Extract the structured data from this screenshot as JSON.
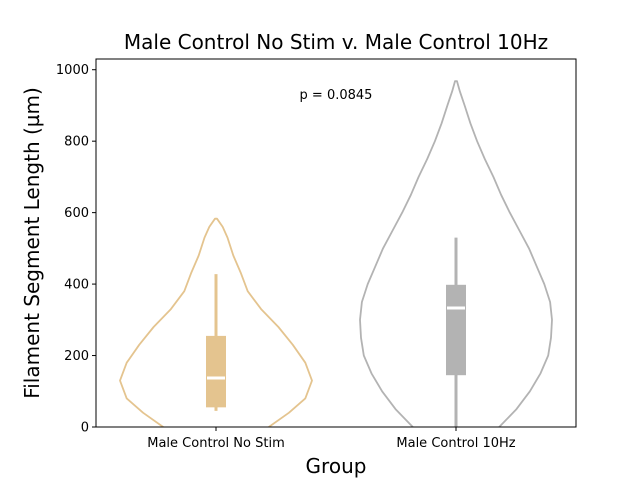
{
  "chart_data": {
    "type": "violin",
    "title": "Male Control No Stim v. Male Control 10Hz",
    "xlabel": "Group",
    "ylabel": "Filament Segment Length (µm)",
    "ylim": [
      0,
      1030
    ],
    "yticks": [
      0,
      200,
      400,
      600,
      800,
      1000
    ],
    "ytick_labels": [
      "0",
      "200",
      "400",
      "600",
      "800",
      "1000"
    ],
    "categories": [
      "Male Control No Stim",
      "Male Control 10Hz"
    ],
    "grid": false,
    "annotation": "p = 0.0845",
    "series": [
      {
        "category": "Male Control No Stim",
        "color": "#e4c48f",
        "box": {
          "min": 45,
          "q1": 55,
          "median": 137,
          "q3": 255,
          "max": 428
        },
        "violin_max": 583,
        "density": [
          [
            0,
            0.55
          ],
          [
            40,
            0.76
          ],
          [
            80,
            0.93
          ],
          [
            130,
            1.0
          ],
          [
            180,
            0.93
          ],
          [
            230,
            0.8
          ],
          [
            280,
            0.65
          ],
          [
            330,
            0.47
          ],
          [
            380,
            0.33
          ],
          [
            430,
            0.26
          ],
          [
            480,
            0.18
          ],
          [
            530,
            0.12
          ],
          [
            560,
            0.07
          ],
          [
            583,
            0.01
          ]
        ]
      },
      {
        "category": "Male Control 10Hz",
        "color": "#b3b3b3",
        "box": {
          "min": 0,
          "q1": 145,
          "median": 333,
          "q3": 398,
          "max": 530
        },
        "violin_max": 968,
        "density": [
          [
            0,
            0.45
          ],
          [
            50,
            0.63
          ],
          [
            100,
            0.77
          ],
          [
            150,
            0.88
          ],
          [
            200,
            0.96
          ],
          [
            250,
            0.99
          ],
          [
            300,
            1.0
          ],
          [
            350,
            0.98
          ],
          [
            400,
            0.92
          ],
          [
            450,
            0.84
          ],
          [
            500,
            0.76
          ],
          [
            550,
            0.66
          ],
          [
            600,
            0.56
          ],
          [
            650,
            0.47
          ],
          [
            700,
            0.39
          ],
          [
            750,
            0.3
          ],
          [
            800,
            0.22
          ],
          [
            850,
            0.15
          ],
          [
            900,
            0.09
          ],
          [
            940,
            0.04
          ],
          [
            968,
            0.01
          ]
        ]
      }
    ]
  }
}
